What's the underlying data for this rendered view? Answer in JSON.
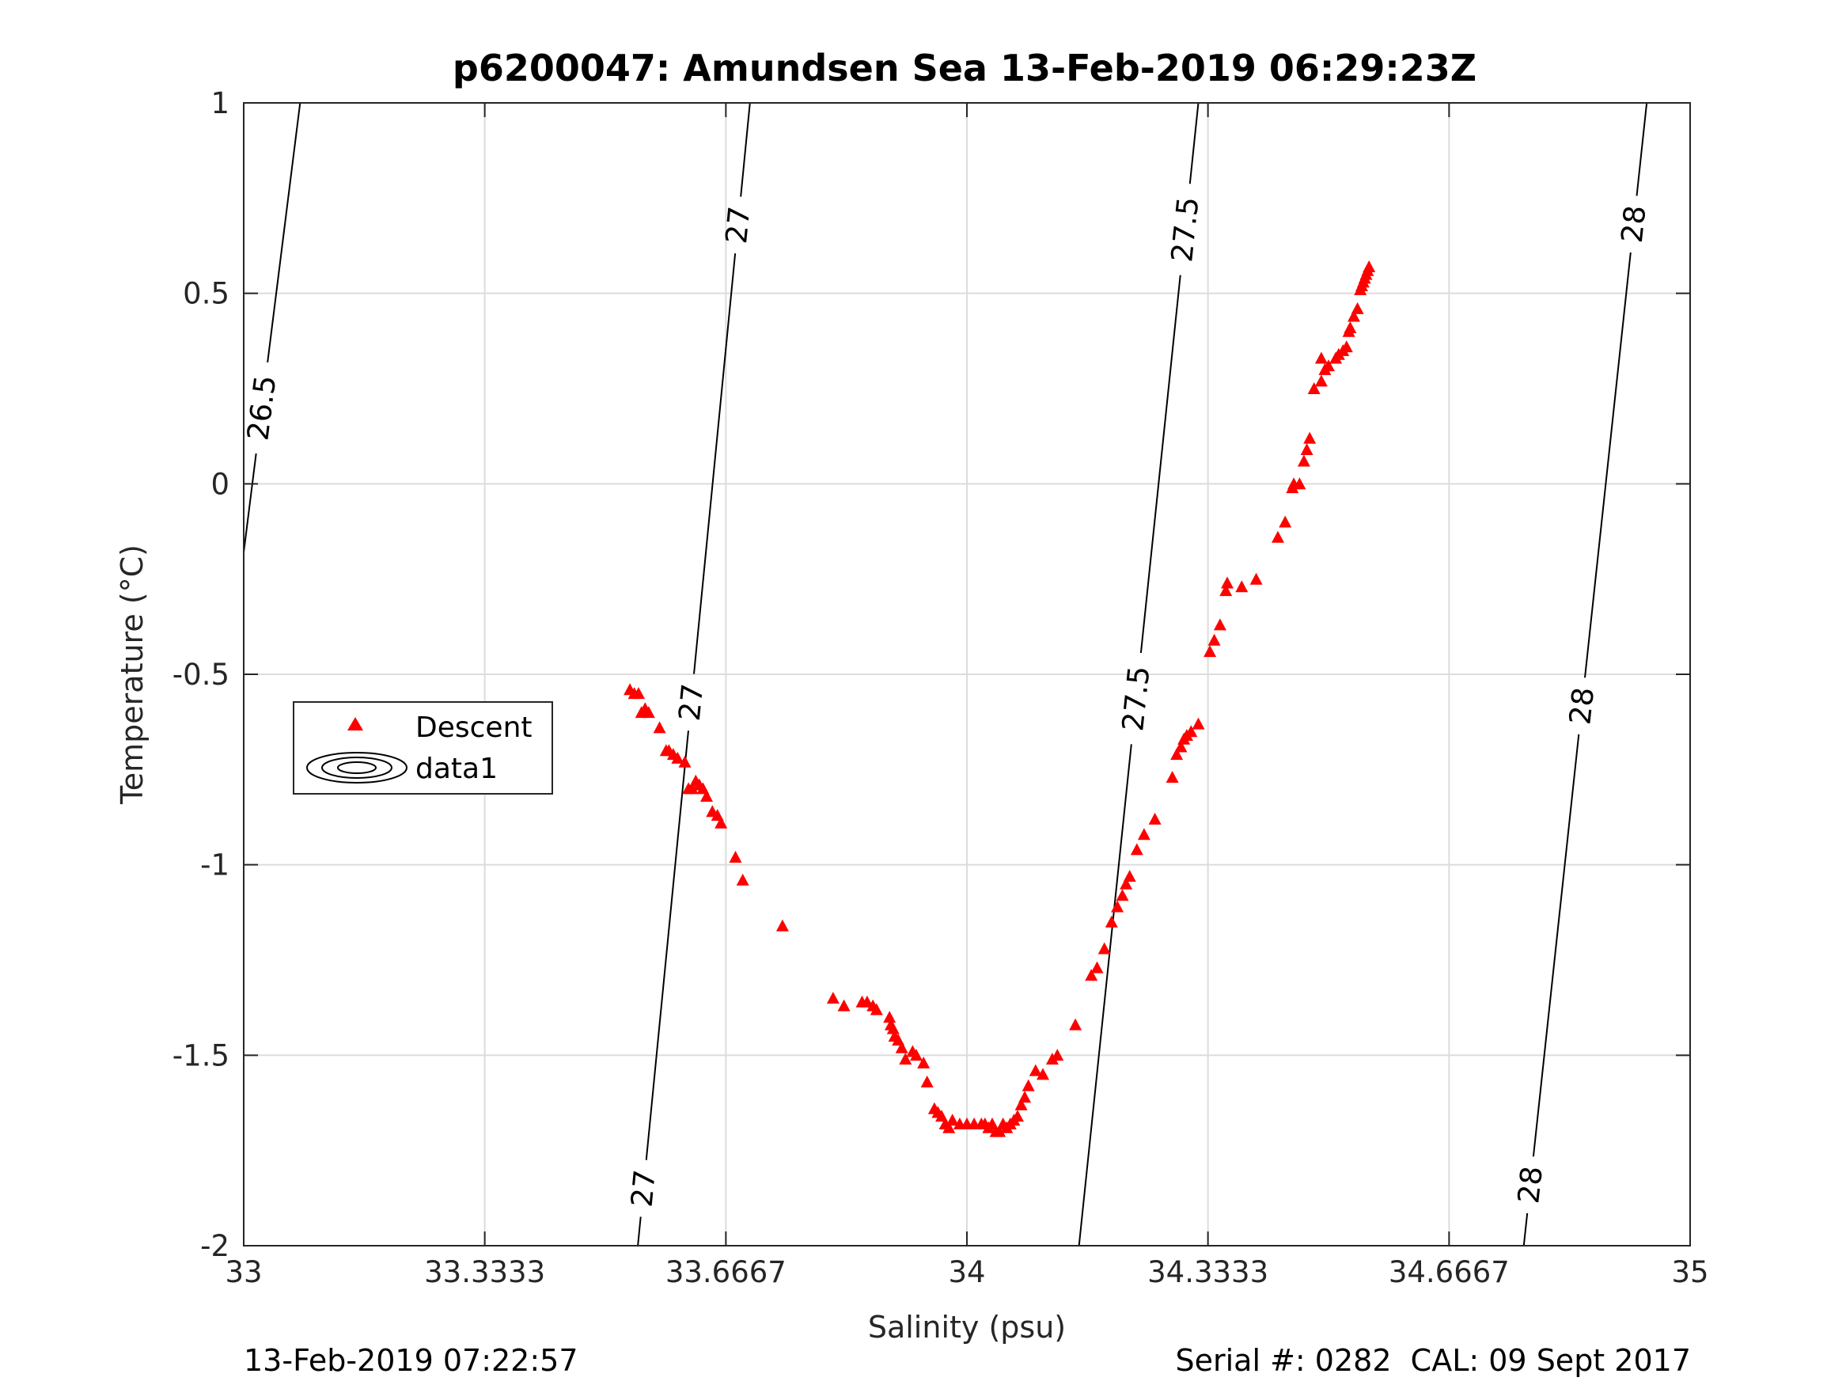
{
  "footer": {
    "left": "13-Feb-2019 07:22:57",
    "right": "Serial #: 0282  CAL: 09 Sept 2017"
  },
  "chart_data": {
    "type": "scatter",
    "title": "p6200047: Amundsen Sea 13-Feb-2019 06:29:23Z",
    "xlabel": "Salinity (psu)",
    "ylabel": "Temperature (°C)",
    "xlim": [
      33,
      35
    ],
    "ylim": [
      -2,
      1
    ],
    "xticks": [
      33,
      33.3333,
      33.6667,
      34,
      34.3333,
      34.6667,
      35
    ],
    "xtick_labels": [
      "33",
      "33.3333",
      "33.6667",
      "34",
      "34.3333",
      "34.6667",
      "35"
    ],
    "yticks": [
      -2,
      -1.5,
      -1,
      -0.5,
      0,
      0.5,
      1
    ],
    "ytick_labels": [
      "-2",
      "-1.5",
      "-1",
      "-0.5",
      "0",
      "0.5",
      "1"
    ],
    "grid": true,
    "legend": {
      "position": "middle-left",
      "entries": [
        "Descent",
        "data1"
      ]
    },
    "colors": {
      "descent": "#ff0000",
      "contour": "#000000",
      "grid": "#dcdcdc"
    },
    "contours": [
      {
        "level": "26.5",
        "points": [
          [
            33.0,
            -0.18
          ],
          [
            33.078,
            1.0
          ]
        ],
        "labels": [
          [
            33.022,
            0.2
          ]
        ]
      },
      {
        "level": "27",
        "points": [
          [
            33.545,
            -2.0
          ],
          [
            33.7,
            1.0
          ]
        ],
        "labels": [
          [
            33.68,
            0.68
          ],
          [
            33.6,
            -0.57
          ],
          [
            33.555,
            -1.85
          ]
        ]
      },
      {
        "level": "27.5",
        "points": [
          [
            34.155,
            -2.0
          ],
          [
            34.32,
            1.0
          ]
        ],
        "labels": [
          [
            34.29,
            0.67
          ],
          [
            34.215,
            -0.56
          ]
        ]
      },
      {
        "level": "28",
        "points": [
          [
            34.77,
            -2.0
          ],
          [
            34.94,
            1.0
          ]
        ],
        "labels": [
          [
            34.93,
            0.68
          ],
          [
            34.835,
            -0.58
          ],
          [
            34.778,
            -1.84
          ]
        ]
      }
    ],
    "series": [
      {
        "name": "Descent",
        "marker": "triangle",
        "points": [
          [
            34.556,
            0.57
          ],
          [
            34.554,
            0.56
          ],
          [
            34.552,
            0.55
          ],
          [
            34.55,
            0.54
          ],
          [
            34.548,
            0.53
          ],
          [
            34.546,
            0.52
          ],
          [
            34.544,
            0.51
          ],
          [
            34.54,
            0.46
          ],
          [
            34.535,
            0.44
          ],
          [
            34.53,
            0.41
          ],
          [
            34.528,
            0.4
          ],
          [
            34.525,
            0.36
          ],
          [
            34.52,
            0.35
          ],
          [
            34.514,
            0.34
          ],
          [
            34.51,
            0.33
          ],
          [
            34.5,
            0.31
          ],
          [
            34.495,
            0.3
          ],
          [
            34.49,
            0.27
          ],
          [
            34.48,
            0.25
          ],
          [
            34.49,
            0.33
          ],
          [
            34.474,
            0.12
          ],
          [
            34.47,
            0.09
          ],
          [
            34.466,
            0.06
          ],
          [
            34.46,
            0.0
          ],
          [
            34.452,
            0.0
          ],
          [
            34.45,
            -0.01
          ],
          [
            34.44,
            -0.1
          ],
          [
            34.43,
            -0.14
          ],
          [
            34.4,
            -0.25
          ],
          [
            34.38,
            -0.27
          ],
          [
            34.36,
            -0.26
          ],
          [
            34.358,
            -0.28
          ],
          [
            34.35,
            -0.37
          ],
          [
            34.342,
            -0.41
          ],
          [
            34.336,
            -0.44
          ],
          [
            34.32,
            -0.63
          ],
          [
            34.31,
            -0.65
          ],
          [
            34.304,
            -0.66
          ],
          [
            34.3,
            -0.67
          ],
          [
            34.296,
            -0.69
          ],
          [
            34.29,
            -0.71
          ],
          [
            34.284,
            -0.77
          ],
          [
            34.26,
            -0.88
          ],
          [
            34.245,
            -0.92
          ],
          [
            34.235,
            -0.96
          ],
          [
            34.225,
            -1.03
          ],
          [
            34.22,
            -1.05
          ],
          [
            34.215,
            -1.08
          ],
          [
            34.208,
            -1.11
          ],
          [
            34.2,
            -1.15
          ],
          [
            34.19,
            -1.22
          ],
          [
            34.18,
            -1.27
          ],
          [
            34.172,
            -1.29
          ],
          [
            34.15,
            -1.42
          ],
          [
            34.125,
            -1.5
          ],
          [
            34.118,
            -1.51
          ],
          [
            34.105,
            -1.55
          ],
          [
            34.095,
            -1.54
          ],
          [
            34.085,
            -1.58
          ],
          [
            34.08,
            -1.61
          ],
          [
            34.075,
            -1.63
          ],
          [
            34.07,
            -1.66
          ],
          [
            34.065,
            -1.67
          ],
          [
            34.06,
            -1.68
          ],
          [
            34.055,
            -1.69
          ],
          [
            34.05,
            -1.68
          ],
          [
            34.045,
            -1.7
          ],
          [
            34.04,
            -1.7
          ],
          [
            34.035,
            -1.68
          ],
          [
            34.03,
            -1.69
          ],
          [
            34.025,
            -1.68
          ],
          [
            34.02,
            -1.68
          ],
          [
            34.01,
            -1.68
          ],
          [
            34.0,
            -1.68
          ],
          [
            33.99,
            -1.68
          ],
          [
            33.98,
            -1.67
          ],
          [
            33.975,
            -1.69
          ],
          [
            33.97,
            -1.68
          ],
          [
            33.965,
            -1.66
          ],
          [
            33.96,
            -1.65
          ],
          [
            33.955,
            -1.64
          ],
          [
            33.945,
            -1.57
          ],
          [
            33.94,
            -1.52
          ],
          [
            33.93,
            -1.5
          ],
          [
            33.925,
            -1.49
          ],
          [
            33.915,
            -1.51
          ],
          [
            33.91,
            -1.48
          ],
          [
            33.905,
            -1.46
          ],
          [
            33.9,
            -1.45
          ],
          [
            33.898,
            -1.43
          ],
          [
            33.895,
            -1.42
          ],
          [
            33.893,
            -1.4
          ],
          [
            33.875,
            -1.38
          ],
          [
            33.87,
            -1.37
          ],
          [
            33.862,
            -1.36
          ],
          [
            33.855,
            -1.36
          ],
          [
            33.83,
            -1.37
          ],
          [
            33.815,
            -1.35
          ],
          [
            33.745,
            -1.16
          ],
          [
            33.69,
            -1.04
          ],
          [
            33.68,
            -0.98
          ],
          [
            33.66,
            -0.89
          ],
          [
            33.655,
            -0.87
          ],
          [
            33.648,
            -0.86
          ],
          [
            33.64,
            -0.82
          ],
          [
            33.635,
            -0.8
          ],
          [
            33.63,
            -0.79
          ],
          [
            33.625,
            -0.78
          ],
          [
            33.62,
            -0.8
          ],
          [
            33.615,
            -0.8
          ],
          [
            33.61,
            -0.73
          ],
          [
            33.6,
            -0.72
          ],
          [
            33.594,
            -0.71
          ],
          [
            33.588,
            -0.7
          ],
          [
            33.584,
            -0.7
          ],
          [
            33.575,
            -0.64
          ],
          [
            33.56,
            -0.6
          ],
          [
            33.555,
            -0.59
          ],
          [
            33.55,
            -0.6
          ],
          [
            33.546,
            -0.55
          ],
          [
            33.54,
            -0.55
          ],
          [
            33.534,
            -0.54
          ]
        ]
      }
    ]
  }
}
